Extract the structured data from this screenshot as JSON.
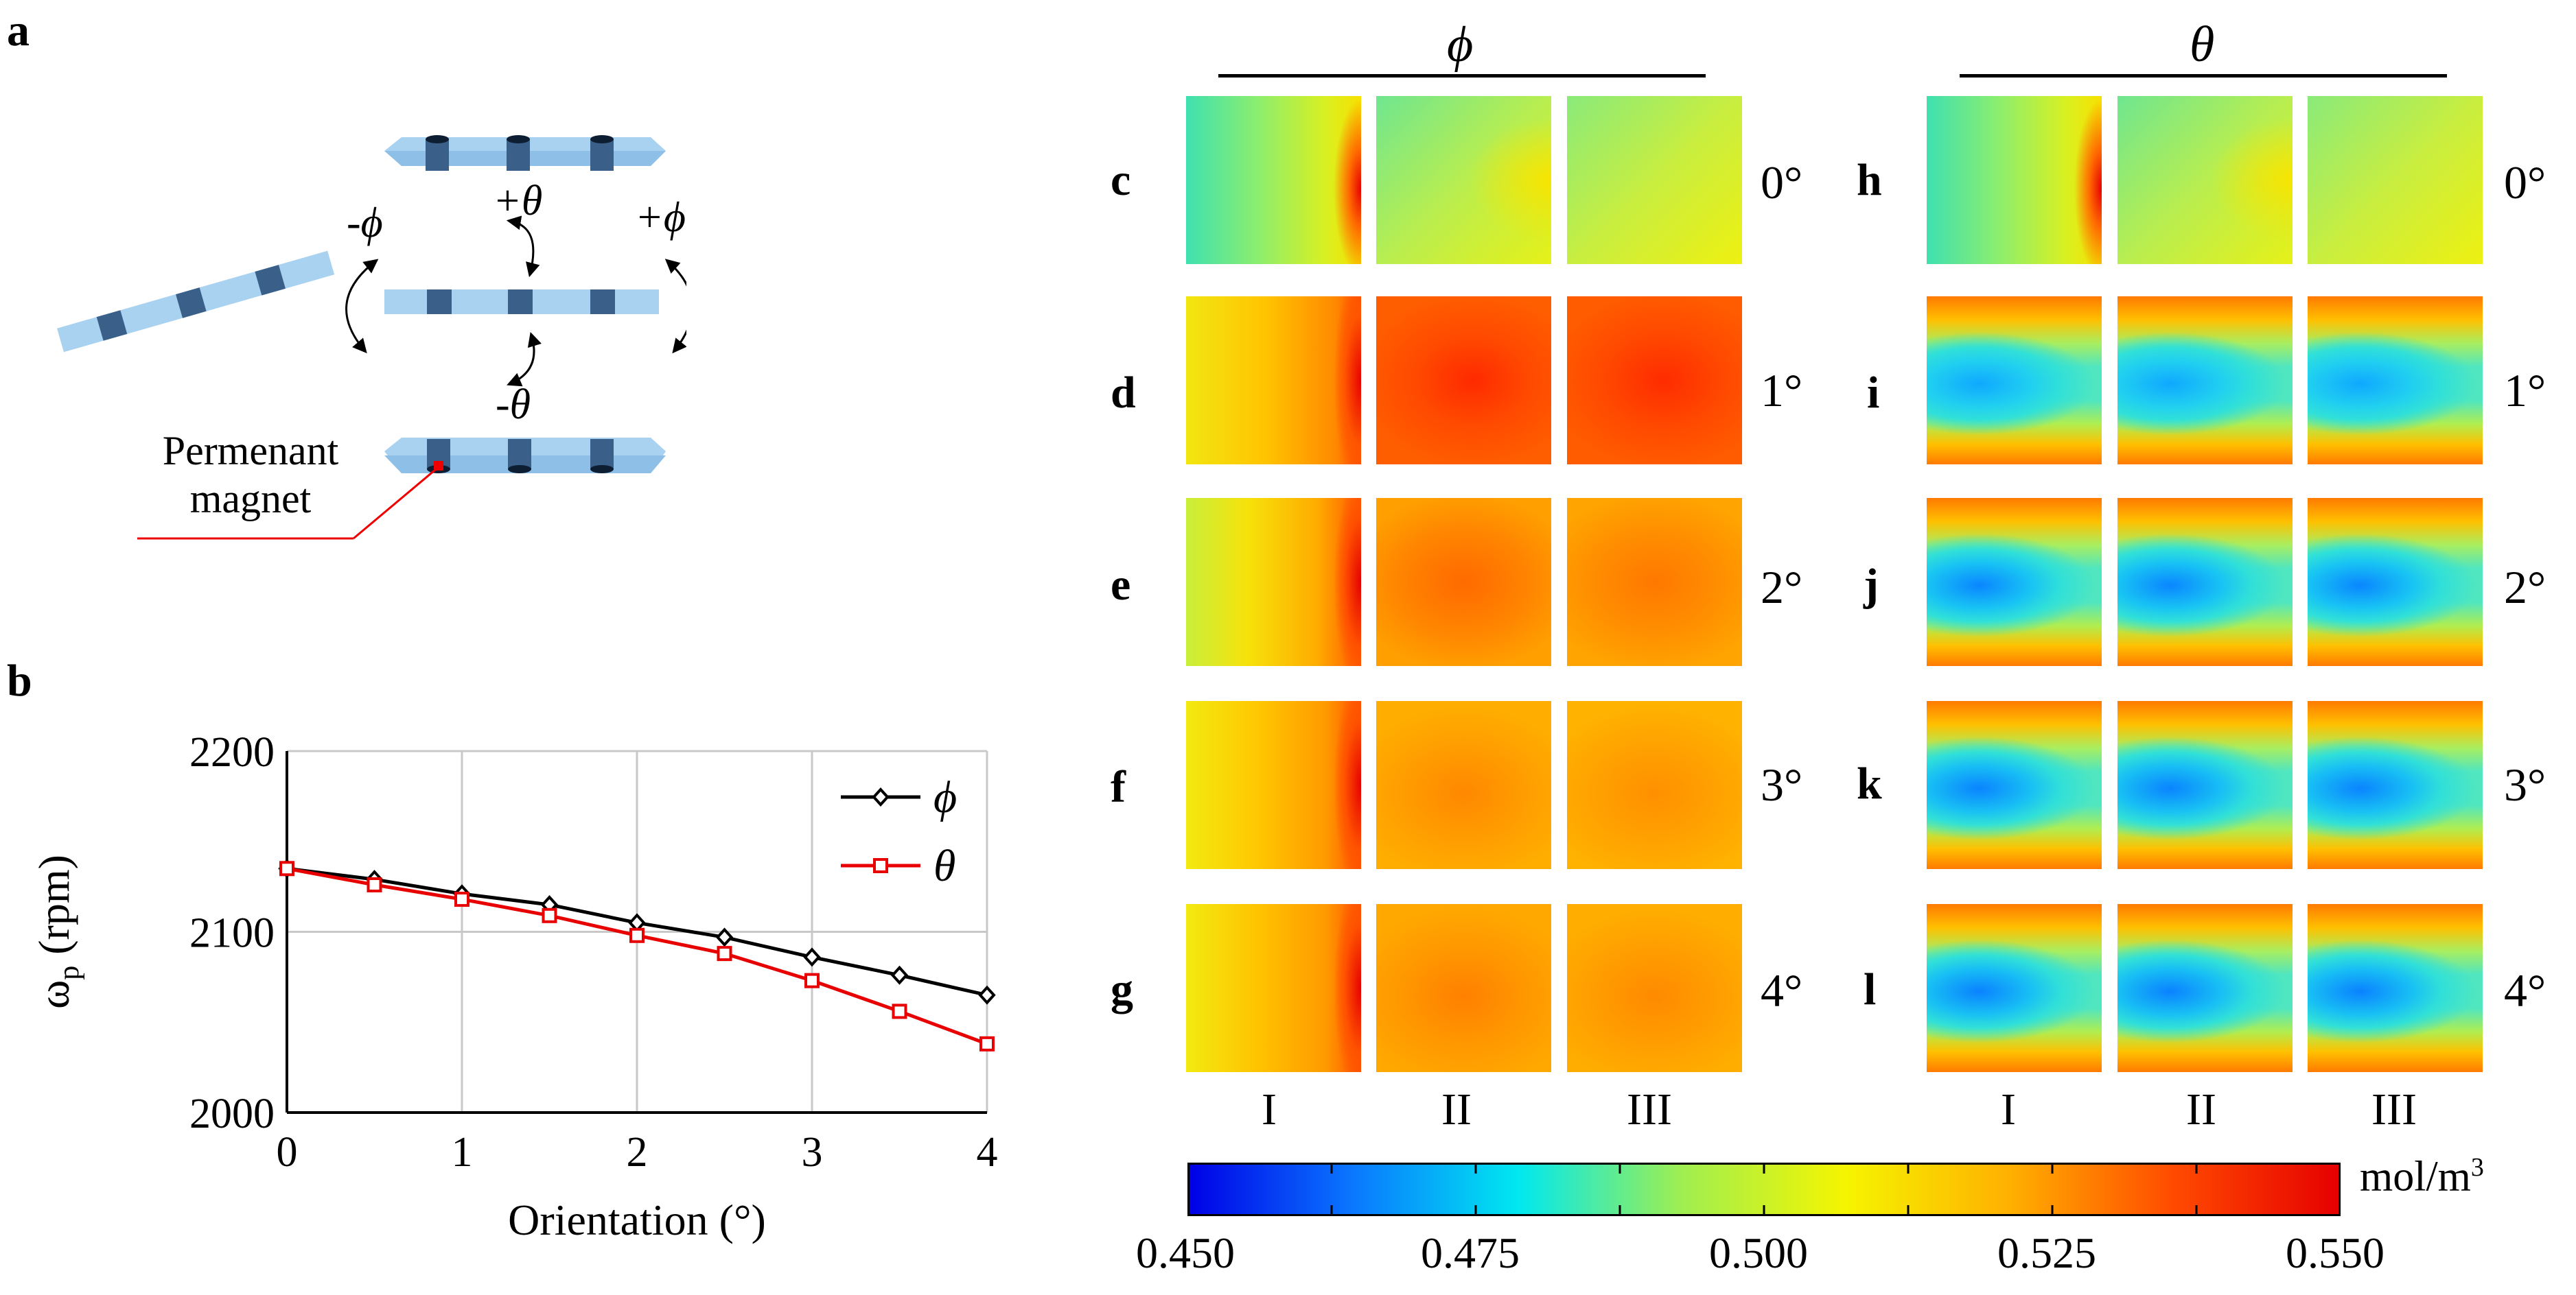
{
  "panels": {
    "a": "a",
    "b": "b",
    "c": "c",
    "d": "d",
    "e": "e",
    "f": "f",
    "g": "g",
    "h": "h",
    "i": "i",
    "j": "j",
    "k": "k",
    "l": "l"
  },
  "diagram": {
    "rotation_labels": {
      "minus_phi": "-ϕ",
      "plus_phi": "+ϕ",
      "plus_theta": "+θ",
      "minus_theta": "-θ"
    },
    "magnet_label_line1": "Permenant",
    "magnet_label_line2": "magnet"
  },
  "groups": {
    "phi": "ϕ",
    "theta": "θ"
  },
  "rows": [
    "0°",
    "1°",
    "2°",
    "3°",
    "4°"
  ],
  "columns": [
    "I",
    "II",
    "III"
  ],
  "colorbar": {
    "unit_main": "mol/m",
    "unit_sup": "3",
    "ticks": [
      "0.450",
      "0.475",
      "0.500",
      "0.525",
      "0.550"
    ],
    "min": 0.45,
    "max": 0.55,
    "colors": [
      "#0000e6",
      "#0a78ff",
      "#00e8f0",
      "#a0ee50",
      "#f5f500",
      "#ffb000",
      "#ff4a00",
      "#e60000"
    ]
  },
  "chart_data": {
    "type": "line",
    "xlabel": "Orientation (°)",
    "ylabel_main": "ω",
    "ylabel_sub": "p",
    "ylabel_unit": " (rpm)",
    "xlim": [
      0,
      4
    ],
    "ylim": [
      2000,
      2200
    ],
    "xticks": [
      0,
      1,
      2,
      3,
      4
    ],
    "yticks": [
      2000,
      2100,
      2200
    ],
    "grid": true,
    "legend_position": "top-right",
    "x": [
      0,
      0.5,
      1,
      1.5,
      2,
      2.5,
      3,
      3.5,
      4
    ],
    "series": [
      {
        "name": "ϕ",
        "color": "#000000",
        "marker": "diamond",
        "values": [
          2135,
          2129,
          2121,
          2115,
          2105,
          2097,
          2086,
          2076,
          2065
        ]
      },
      {
        "name": "θ",
        "color": "#e80000",
        "marker": "square",
        "values": [
          2135,
          2126,
          2118,
          2109,
          2098,
          2088,
          2073,
          2056,
          2038
        ]
      }
    ]
  }
}
